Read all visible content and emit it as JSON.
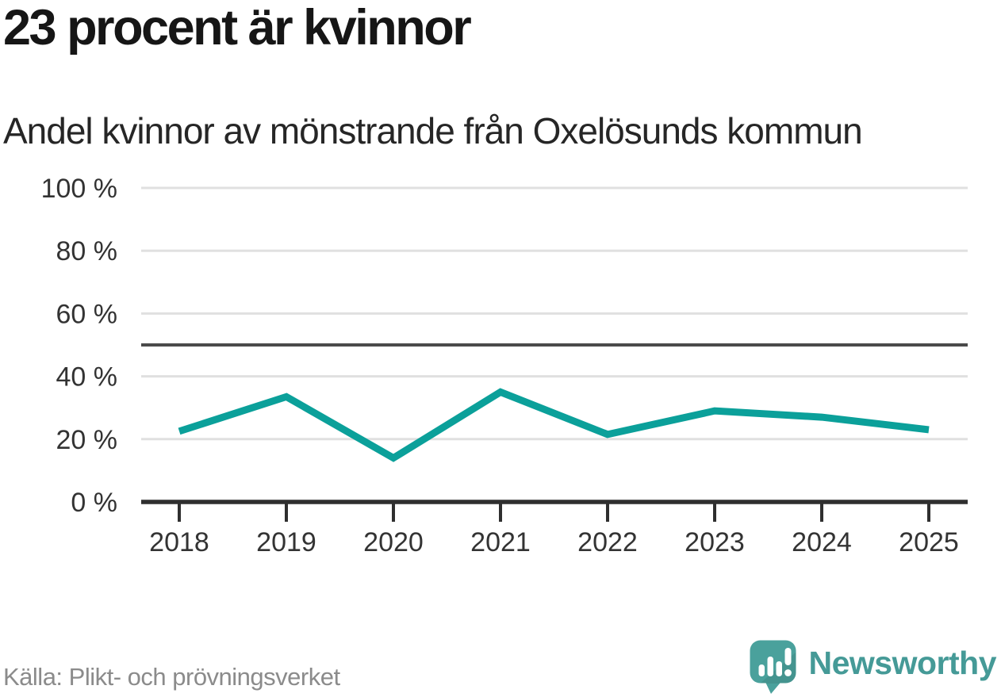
{
  "header": {
    "title": "23 procent är kvinnor",
    "subtitle": "Andel kvinnor av mönstrande från Oxelösunds kommun"
  },
  "footer": {
    "source": "Källa: Plikt- och prövningsverket",
    "brand": "Newsworthy",
    "logo_icon": "speech-bubble-bar-chart-exclamation"
  },
  "colors": {
    "line": "#0ba09a",
    "grid": "#e0e0e0",
    "reference_line": "#4a4a4a",
    "axis": "#2f2f2f",
    "tick_label": "#333333",
    "brand_teal": "#459a97",
    "logo_bubble": "#4aa19c",
    "source_gray": "#8b8b8b"
  },
  "chart_data": {
    "type": "line",
    "title": "23 procent är kvinnor",
    "subtitle": "Andel kvinnor av mönstrande från Oxelösunds kommun",
    "categories": [
      "2018",
      "2019",
      "2020",
      "2021",
      "2022",
      "2023",
      "2024",
      "2025"
    ],
    "series": [
      {
        "name": "Andel kvinnor av mönstrande",
        "values": [
          22.5,
          33.5,
          14,
          35,
          21.5,
          29,
          27,
          23
        ]
      }
    ],
    "ylim": [
      0,
      100
    ],
    "yticks": [
      0,
      20,
      40,
      60,
      80,
      100
    ],
    "ytick_suffix": " %",
    "reference_line": 50,
    "grid": true,
    "legend_position": "none"
  }
}
